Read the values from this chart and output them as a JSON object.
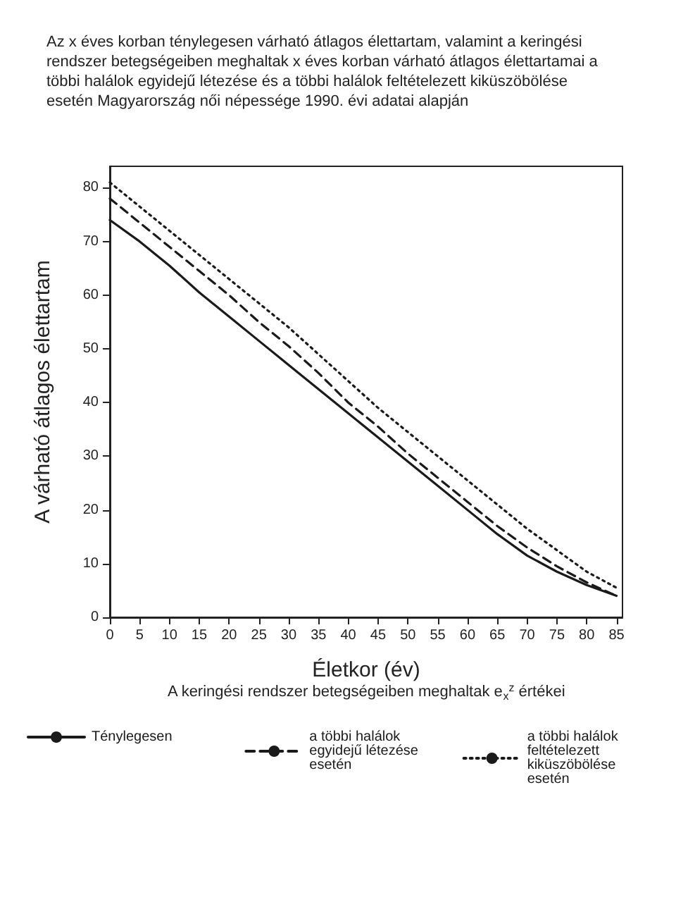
{
  "chart_data": {
    "type": "line",
    "title": "Az x éves korban ténylegesen várható átlagos élettartam, valamint a keringési rendszer betegségeiben meghaltak x éves korban várható átlagos élettartamai a többi halálok egyidejű létezése és a többi halálok feltételezett kiküszöbölése esetén Magyarország női népessége 1990. évi adatai alapján",
    "xlabel": "Életkor (év)",
    "ylabel": "A várható átlagos élettartam",
    "legend_title": "A keringési rendszer betegségeiben meghaltak e$_{x}$$^{z}$ értékei",
    "x": [
      0,
      5,
      10,
      15,
      20,
      25,
      30,
      35,
      40,
      45,
      50,
      55,
      60,
      65,
      70,
      75,
      80,
      85
    ],
    "series": [
      {
        "name": "Ténylegesen",
        "color": "#1a1a1a",
        "line_style": "solid",
        "values": [
          74,
          70,
          65.5,
          60.5,
          56,
          51.5,
          47,
          42.5,
          38,
          33.5,
          29,
          24.5,
          20,
          15.5,
          11.5,
          8.5,
          6,
          4
        ]
      },
      {
        "name": "a többi halálok egyidejű létezése esetén",
        "color": "#1a1a1a",
        "line_style": "dashed",
        "values": [
          78,
          73.5,
          69,
          64.5,
          60,
          55,
          50.5,
          45.5,
          40,
          35.5,
          30.5,
          26,
          21.5,
          17,
          13,
          9.5,
          6.5,
          4
        ]
      },
      {
        "name": "a többi halálok feltételezett kiküszöbölése esetén",
        "color": "#1a1a1a",
        "line_style": "dotted",
        "values": [
          81,
          76.5,
          72,
          67.5,
          63,
          58.5,
          54,
          49,
          44,
          39,
          34.5,
          30,
          25.5,
          21,
          16.5,
          12.5,
          8.5,
          5.5
        ]
      }
    ],
    "xlim": [
      0,
      86
    ],
    "xticks": [
      0,
      5,
      10,
      15,
      20,
      25,
      30,
      35,
      40,
      45,
      50,
      55,
      60,
      65,
      70,
      75,
      80,
      85
    ],
    "ylim": [
      0,
      84
    ],
    "yticks": [
      0,
      10,
      20,
      30,
      40,
      50,
      60,
      70,
      80
    ],
    "grid": false,
    "legend": "bottom",
    "marker": "none"
  }
}
